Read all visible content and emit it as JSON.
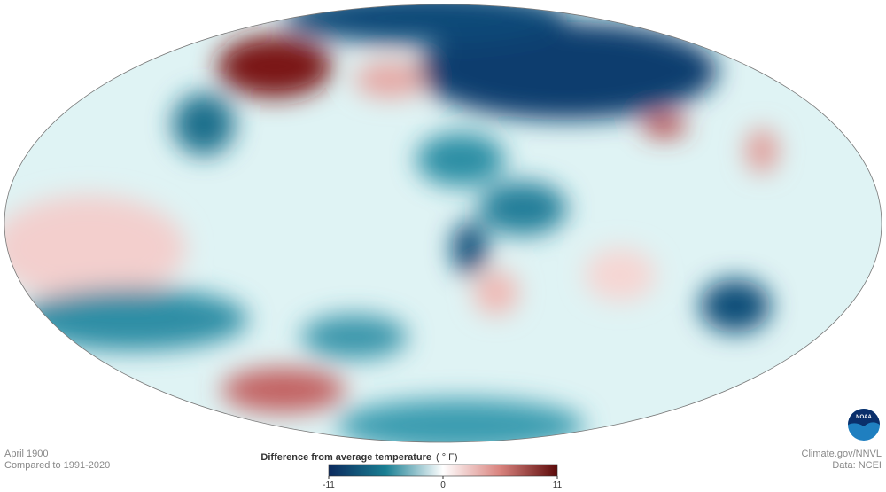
{
  "header": {
    "date": "April 1900",
    "baseline": "Compared to 1991-2020"
  },
  "credits": {
    "source": "Climate.gov/NNVL",
    "data": "Data: NCEI",
    "logo": "NOAA"
  },
  "colorbar": {
    "title": "Difference from average temperature",
    "unit": "( ° F)",
    "range": [
      -11,
      11
    ],
    "ticks": [
      -11,
      0,
      11
    ],
    "colors": [
      "#0b2a5e",
      "#1a7f93",
      "#ffffff",
      "#d9837e",
      "#5c0a0a"
    ]
  }
}
